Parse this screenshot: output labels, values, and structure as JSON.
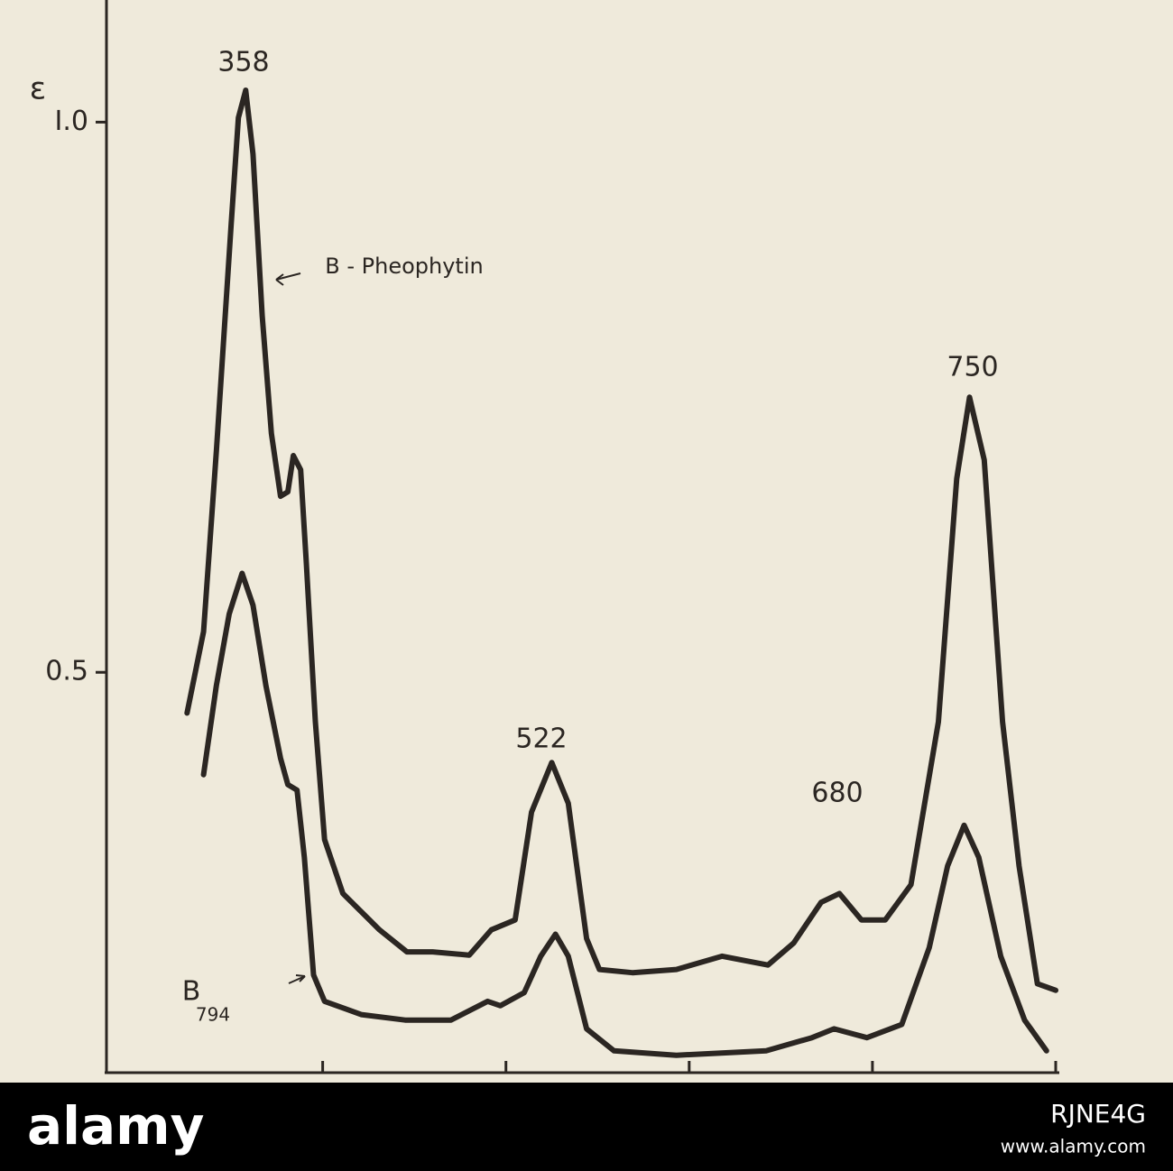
{
  "chart_data": {
    "type": "line",
    "y_label": "ε",
    "xlim": [
      283,
      800
    ],
    "xticks": [
      400,
      500,
      600,
      700,
      800
    ],
    "ylim": [
      0.137,
      1.111
    ],
    "yticks": [
      0.5,
      {
        "value": 1,
        "label": "I.0"
      }
    ],
    "series": [
      {
        "color": "#2b2622",
        "x": [
          326,
          335,
          342,
          350,
          354,
          358,
          362,
          367,
          372,
          377,
          381,
          384,
          388,
          391,
          396,
          401,
          411,
          431,
          446,
          460,
          480,
          492,
          505,
          514,
          525,
          534,
          544,
          551,
          569,
          593,
          618,
          643,
          657,
          672,
          682,
          694,
          707,
          721,
          736,
          746,
          753,
          761,
          771,
          780,
          790,
          800
        ],
        "values": [
          0.463,
          0.537,
          0.701,
          0.906,
          1.004,
          1.029,
          0.971,
          0.824,
          0.717,
          0.66,
          0.664,
          0.697,
          0.684,
          0.602,
          0.455,
          0.348,
          0.299,
          0.266,
          0.246,
          0.246,
          0.243,
          0.266,
          0.275,
          0.373,
          0.418,
          0.381,
          0.258,
          0.23,
          0.227,
          0.23,
          0.242,
          0.234,
          0.254,
          0.291,
          0.299,
          0.275,
          0.275,
          0.307,
          0.455,
          0.676,
          0.75,
          0.693,
          0.455,
          0.324,
          0.217,
          0.211
        ]
      },
      {
        "color": "#2b2622",
        "x": [
          335,
          342,
          349,
          356,
          362,
          369,
          377,
          381,
          386,
          390,
          395,
          401,
          421,
          445,
          470,
          490,
          497,
          510,
          519,
          527,
          534,
          544,
          559,
          593,
          642,
          667,
          679,
          697,
          716,
          731,
          741,
          750,
          758,
          770,
          783,
          795
        ],
        "values": [
          0.407,
          0.488,
          0.553,
          0.59,
          0.561,
          0.488,
          0.422,
          0.398,
          0.393,
          0.332,
          0.225,
          0.201,
          0.189,
          0.184,
          0.184,
          0.201,
          0.197,
          0.209,
          0.242,
          0.262,
          0.242,
          0.176,
          0.156,
          0.152,
          0.156,
          0.168,
          0.176,
          0.168,
          0.18,
          0.25,
          0.324,
          0.361,
          0.332,
          0.242,
          0.184,
          0.156
        ]
      }
    ],
    "annotations": [
      "358",
      "B - Pheophytin",
      "750",
      "522",
      "680",
      "B",
      "794"
    ]
  },
  "watermark": {
    "brand": "alamy",
    "id": "RJNE4G",
    "site": "www.alamy.com"
  }
}
